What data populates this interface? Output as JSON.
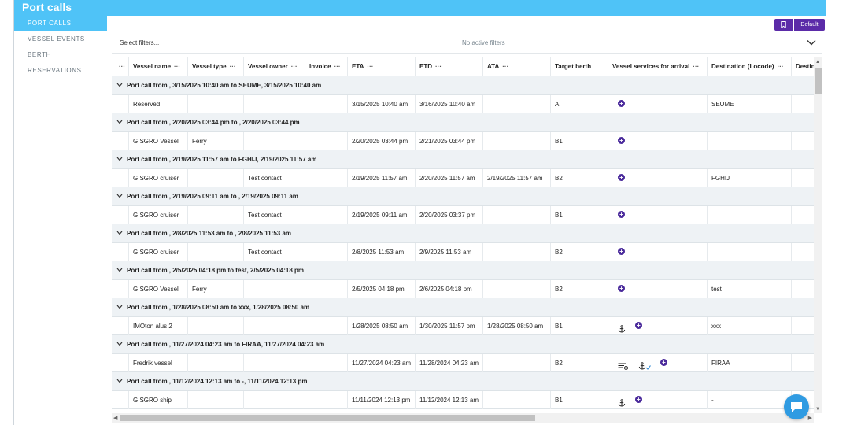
{
  "header": {
    "title": "Port calls"
  },
  "sidebar": {
    "items": [
      {
        "label": "PORT CALLS",
        "active": true
      },
      {
        "label": "VESSEL EVENTS",
        "active": false
      },
      {
        "label": "BERTH RESERVATIONS",
        "active": false
      }
    ]
  },
  "toolbar": {
    "default_label": "Default"
  },
  "filters": {
    "select_placeholder": "Select filters...",
    "status": "No active filters"
  },
  "columns": [
    "Vessel name",
    "Vessel type",
    "Vessel owner",
    "Invoice",
    "ETA",
    "ETD",
    "ATA",
    "Target berth",
    "Vessel services for arrival",
    "Destination (Locode)",
    "Destin"
  ],
  "groups": [
    {
      "title": "Port call from , 3/15/2025 10:40 am to SEUME, 3/15/2025 10:40 am",
      "row": {
        "vessel_name": "Reserved",
        "vessel_type": "",
        "vessel_owner": "",
        "invoice": "",
        "eta": "3/15/2025 10:40 am",
        "etd": "3/16/2025 10:40 am",
        "ata": "",
        "target_berth": "A",
        "services": [
          "plus"
        ],
        "destination": "SEUME"
      }
    },
    {
      "title": "Port call from , 2/20/2025 03:44 pm to , 2/20/2025 03:44 pm",
      "row": {
        "vessel_name": "GISGRO Vessel",
        "vessel_type": "Ferry",
        "vessel_owner": "",
        "invoice": "",
        "eta": "2/20/2025 03:44 pm",
        "etd": "2/21/2025 03:44 pm",
        "ata": "",
        "target_berth": "B1",
        "services": [
          "plus"
        ],
        "destination": ""
      }
    },
    {
      "title": "Port call from , 2/19/2025 11:57 am to FGHIJ, 2/19/2025 11:57 am",
      "row": {
        "vessel_name": "GISGRO cruiser",
        "vessel_type": "",
        "vessel_owner": "Test contact",
        "invoice": "",
        "eta": "2/19/2025 11:57 am",
        "etd": "2/20/2025 11:57 am",
        "ata": "2/19/2025 11:57 am",
        "target_berth": "B2",
        "services": [
          "plus"
        ],
        "destination": "FGHIJ"
      }
    },
    {
      "title": "Port call from , 2/19/2025 09:11 am to , 2/19/2025 09:11 am",
      "row": {
        "vessel_name": "GISGRO cruiser",
        "vessel_type": "",
        "vessel_owner": "Test contact",
        "invoice": "",
        "eta": "2/19/2025 09:11 am",
        "etd": "2/20/2025 03:37 pm",
        "ata": "",
        "target_berth": "B1",
        "services": [
          "plus"
        ],
        "destination": ""
      }
    },
    {
      "title": "Port call from , 2/8/2025 11:53 am to , 2/8/2025 11:53 am",
      "row": {
        "vessel_name": "GISGRO cruiser",
        "vessel_type": "",
        "vessel_owner": "Test contact",
        "invoice": "",
        "eta": "2/8/2025 11:53 am",
        "etd": "2/9/2025 11:53 am",
        "ata": "",
        "target_berth": "B2",
        "services": [
          "plus"
        ],
        "destination": ""
      }
    },
    {
      "title": "Port call from , 2/5/2025 04:18 pm to test, 2/5/2025 04:18 pm",
      "row": {
        "vessel_name": "GISGRO Vessel",
        "vessel_type": "Ferry",
        "vessel_owner": "",
        "invoice": "",
        "eta": "2/5/2025 04:18 pm",
        "etd": "2/6/2025 04:18 pm",
        "ata": "",
        "target_berth": "B2",
        "services": [
          "plus"
        ],
        "destination": "test"
      }
    },
    {
      "title": "Port call from , 1/28/2025 08:50 am to xxx, 1/28/2025 08:50 am",
      "row": {
        "vessel_name": "IMOton alus 2",
        "vessel_type": "",
        "vessel_owner": "",
        "invoice": "",
        "eta": "1/28/2025 08:50 am",
        "etd": "1/30/2025 11:57 pm",
        "ata": "1/28/2025 08:50 am",
        "target_berth": "B1",
        "services": [
          "anchor",
          "plus"
        ],
        "destination": "xxx"
      }
    },
    {
      "title": "Port call from , 11/27/2024 04:23 am to FIRAA, 11/27/2024 04:23 am",
      "row": {
        "vessel_name": "Fredrik vessel",
        "vessel_type": "",
        "vessel_owner": "",
        "invoice": "",
        "eta": "11/27/2024 04:23 am",
        "etd": "11/28/2024 04:23 am",
        "ata": "",
        "target_berth": "B2",
        "services": [
          "list-gear",
          "anchor-check",
          "plus"
        ],
        "destination": "FIRAA"
      }
    },
    {
      "title": "Port call from , 11/12/2024 12:13 am to -, 11/11/2024 12:13 pm",
      "row": {
        "vessel_name": "GISGRO ship",
        "vessel_type": "",
        "vessel_owner": "",
        "invoice": "",
        "eta": "11/11/2024 12:13 pm",
        "etd": "11/12/2024 12:13 am",
        "ata": "",
        "target_berth": "B1",
        "services": [
          "anchor",
          "plus"
        ],
        "destination": "-"
      }
    }
  ]
}
